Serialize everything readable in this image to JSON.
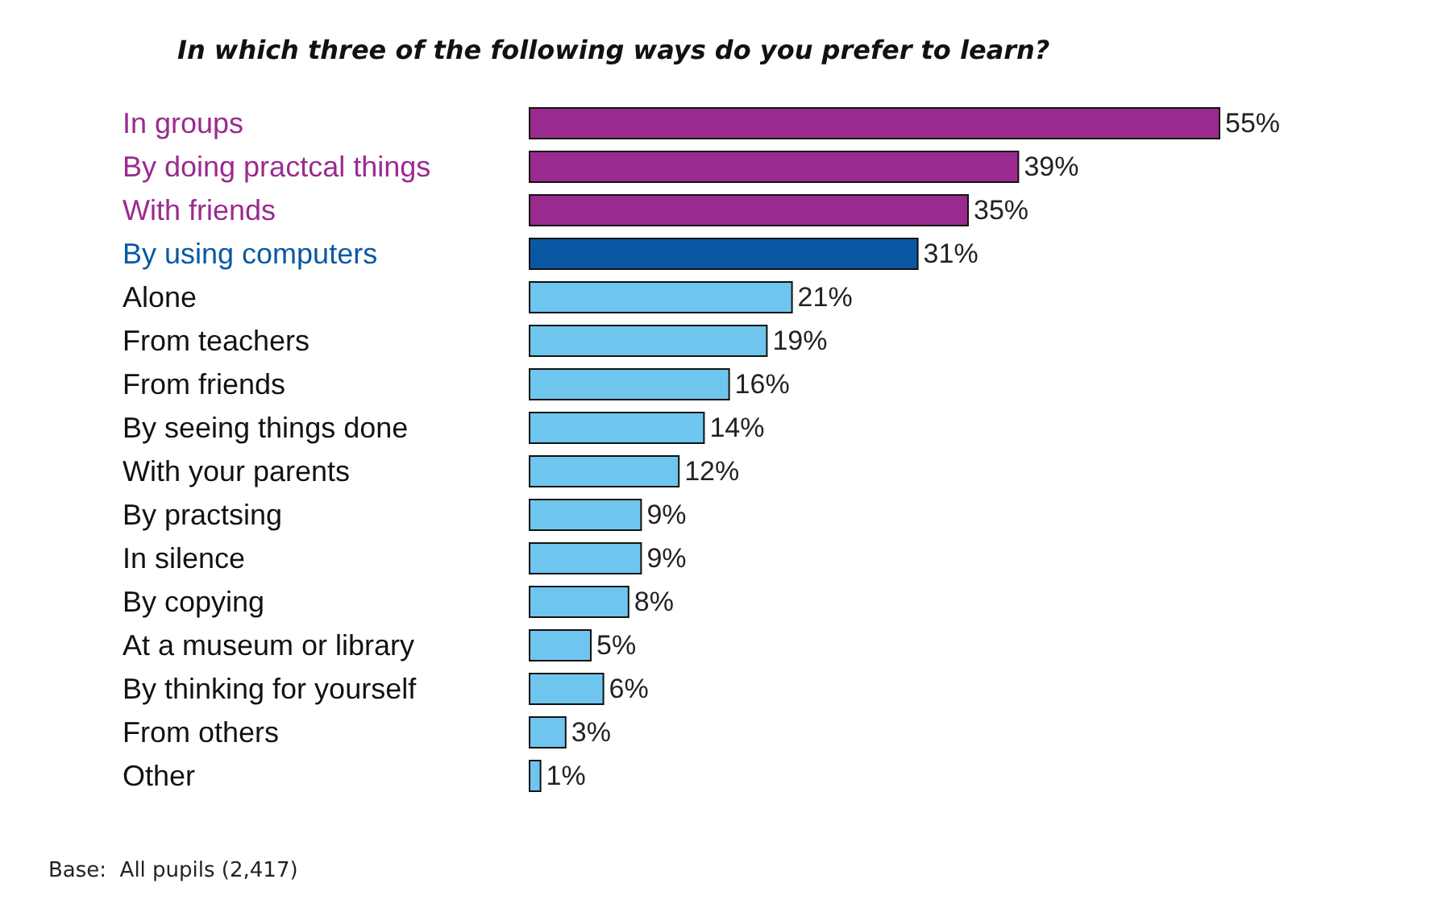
{
  "chart_data": {
    "type": "bar",
    "orientation": "horizontal",
    "title": "In which three of the following ways do you prefer to learn?",
    "categories": [
      "In groups",
      "By doing practcal things",
      "With friends",
      "By using computers",
      "Alone",
      "From teachers",
      "From friends",
      "By seeing things done",
      "With your parents",
      "By practsing",
      "In silence",
      "By copying",
      "At a museum or library",
      "By thinking for yourself",
      "From others",
      "Other"
    ],
    "values": [
      55,
      39,
      35,
      31,
      21,
      19,
      16,
      14,
      12,
      9,
      9,
      8,
      5,
      6,
      3,
      1
    ],
    "value_labels": [
      "55%",
      "39%",
      "35%",
      "31%",
      "21%",
      "19%",
      "16%",
      "14%",
      "12%",
      "9%",
      "9%",
      "8%",
      "5%",
      "6%",
      "3%",
      "1%"
    ],
    "colors": [
      "#9b2a8f",
      "#9b2a8f",
      "#9b2a8f",
      "#0a58a4",
      "#6ec6ee",
      "#6ec6ee",
      "#6ec6ee",
      "#6ec6ee",
      "#6ec6ee",
      "#6ec6ee",
      "#6ec6ee",
      "#6ec6ee",
      "#6ec6ee",
      "#6ec6ee",
      "#6ec6ee",
      "#6ec6ee"
    ],
    "annotations": [
      "Base:  All pupils (2,417)"
    ]
  }
}
